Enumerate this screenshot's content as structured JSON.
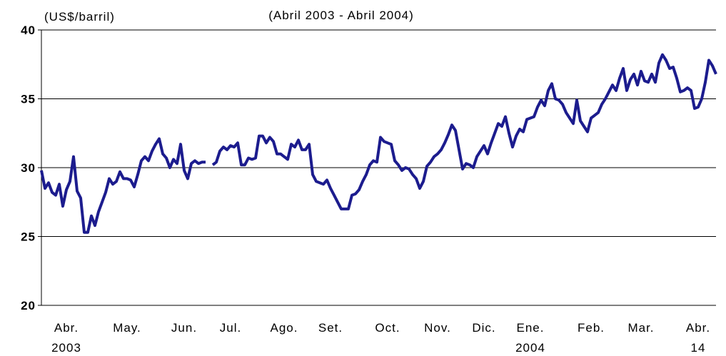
{
  "chart_data": {
    "type": "line",
    "title": "(Abril 2003 - Abril 2004)",
    "ylabel": "(US$/barril)",
    "ylim": [
      20,
      40
    ],
    "yticks": [
      20,
      25,
      30,
      35,
      40
    ],
    "grid": true,
    "categories": [
      null,
      null,
      null,
      null,
      null,
      null,
      null,
      "Abr. 2003",
      null,
      null,
      null,
      null,
      null,
      null,
      null,
      null,
      null,
      null,
      null,
      null,
      null,
      null,
      null,
      null,
      "May.",
      null,
      null,
      null,
      null,
      null,
      null,
      null,
      null,
      null,
      null,
      null,
      null,
      null,
      null,
      null,
      "Jun.",
      null,
      null,
      null,
      null,
      null,
      null,
      null,
      null,
      null,
      null,
      null,
      null,
      "Jul.",
      null,
      null,
      null,
      null,
      null,
      null,
      null,
      null,
      null,
      null,
      null,
      null,
      null,
      null,
      "Ago.",
      null,
      null,
      null,
      null,
      null,
      null,
      null,
      null,
      null,
      null,
      null,
      null,
      "Set.",
      null,
      null,
      null,
      null,
      null,
      null,
      null,
      null,
      null,
      null,
      null,
      null,
      null,
      null,
      null,
      "Oct.",
      null,
      null,
      null,
      null,
      null,
      null,
      null,
      null,
      null,
      null,
      null,
      null,
      null,
      "Nov.",
      null,
      null,
      null,
      null,
      null,
      null,
      null,
      null,
      null,
      null,
      null,
      null,
      "Dic.",
      null,
      null,
      null,
      null,
      null,
      null,
      null,
      null,
      null,
      null,
      null,
      null,
      "Ene. 2004",
      null,
      null,
      null,
      null,
      null,
      null,
      null,
      null,
      null,
      null,
      null,
      null,
      null,
      null,
      null,
      null,
      "Feb.",
      null,
      null,
      null,
      null,
      null,
      null,
      null,
      null,
      null,
      null,
      null,
      null,
      null,
      "Mar.",
      null,
      null,
      null,
      null,
      null,
      null,
      null,
      null,
      null,
      null,
      null,
      null,
      null,
      null,
      null,
      "Abr. 14",
      null,
      null,
      null,
      null,
      null
    ],
    "series": [
      {
        "name": null,
        "color": "#1c1c8e",
        "values": [
          29.8,
          28.5,
          28.9,
          28.2,
          28.0,
          28.8,
          27.2,
          28.4,
          29.0,
          30.8,
          28.3,
          27.8,
          25.3,
          25.3,
          26.5,
          25.8,
          26.8,
          27.5,
          28.2,
          29.2,
          28.8,
          29.0,
          29.7,
          29.2,
          29.2,
          29.1,
          28.6,
          29.5,
          30.5,
          30.8,
          30.5,
          31.2,
          31.7,
          32.1,
          31.0,
          30.7,
          30.0,
          30.6,
          30.3,
          31.7,
          29.8,
          29.2,
          30.3,
          30.5,
          30.3,
          30.4,
          30.4,
          null,
          30.2,
          30.4,
          31.2,
          31.5,
          31.3,
          31.6,
          31.5,
          31.8,
          30.2,
          30.2,
          30.7,
          30.6,
          30.7,
          32.3,
          32.3,
          31.8,
          32.2,
          31.9,
          31.0,
          31.0,
          30.8,
          30.6,
          31.7,
          31.5,
          32.0,
          31.3,
          31.3,
          31.7,
          29.5,
          29.0,
          28.9,
          28.8,
          29.1,
          28.5,
          28.0,
          27.5,
          27.0,
          27.0,
          27.0,
          28.0,
          28.1,
          28.4,
          29.0,
          29.5,
          30.2,
          30.5,
          30.4,
          32.2,
          31.9,
          31.8,
          31.7,
          30.5,
          30.2,
          29.8,
          30.0,
          29.9,
          29.5,
          29.2,
          28.5,
          29.0,
          30.1,
          30.4,
          30.8,
          31.0,
          31.3,
          31.8,
          32.4,
          33.1,
          32.7,
          31.3,
          29.9,
          30.3,
          30.2,
          30.0,
          30.8,
          31.2,
          31.6,
          31.0,
          31.8,
          32.5,
          33.2,
          33.0,
          33.7,
          32.5,
          31.5,
          32.3,
          32.8,
          32.6,
          33.5,
          33.6,
          33.7,
          34.4,
          34.9,
          34.5,
          35.6,
          36.1,
          35.0,
          34.9,
          34.6,
          34.0,
          33.6,
          33.2,
          34.9,
          33.4,
          33.0,
          32.6,
          33.6,
          33.8,
          34.0,
          34.6,
          35.0,
          35.5,
          36.0,
          35.6,
          36.5,
          37.2,
          35.6,
          36.4,
          36.8,
          36.0,
          37.0,
          36.3,
          36.2,
          36.8,
          36.2,
          37.6,
          38.2,
          37.8,
          37.2,
          37.3,
          36.5,
          35.5,
          35.6,
          35.8,
          35.6,
          34.3,
          34.4,
          35.0,
          36.2,
          37.8,
          37.4,
          36.8
        ]
      }
    ]
  }
}
